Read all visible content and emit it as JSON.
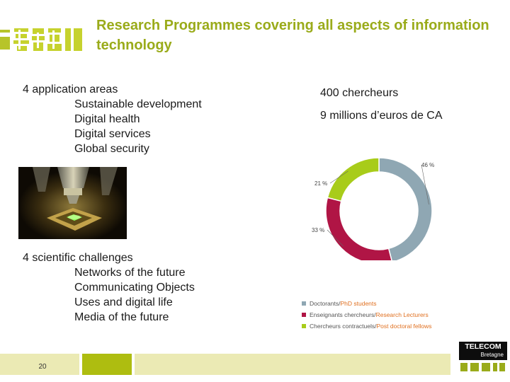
{
  "slide": {
    "title": "Research Programmes covering all aspects of information technology",
    "page_number": "20"
  },
  "logo": {
    "icon": "institut-mines-telecom-logo",
    "corner_title": "TELECOM",
    "corner_subtitle": "Bretagne"
  },
  "application_areas": {
    "heading": "4 application areas",
    "items": [
      "Sustainable development",
      "Digital health",
      "Digital services",
      "Global security"
    ]
  },
  "scientific_challenges": {
    "heading": "4 scientific challenges",
    "items": [
      "Networks of the future",
      "Communicating Objects",
      "Uses and digital life",
      "Media of the future"
    ]
  },
  "stats": {
    "researchers": "400 chercheurs",
    "revenue": "9 millions d’euros de CA"
  },
  "photo": {
    "icon": "microscope-chip-photo"
  },
  "colors": {
    "title": "#9aab1a",
    "phd": "#8fa7b3",
    "lecturers": "#b01545",
    "postdoc": "#a8cc1a",
    "footer_bar": "#ebeab4",
    "footer_accent": "#aebd10"
  },
  "chart_data": {
    "type": "pie",
    "donut": true,
    "slices": [
      {
        "label": "Doctorants / PhD students",
        "value": 46
      },
      {
        "label": "Enseignants chercheurs / Research Lecturers",
        "value": 33
      },
      {
        "label": "Chercheurs contractuels / Post doctoral fellows",
        "value": 21
      }
    ],
    "data_labels": [
      "46 %",
      "33 %",
      "21 %"
    ],
    "legend": [
      {
        "fr": "Doctorants",
        "en": "PhD students"
      },
      {
        "fr": "Enseignants chercheurs",
        "en": "Research Lecturers"
      },
      {
        "fr": "Chercheurs contractuels",
        "en": "Post doctoral fellows"
      }
    ],
    "legend_separator": " / ",
    "legend_position": "bottom"
  }
}
